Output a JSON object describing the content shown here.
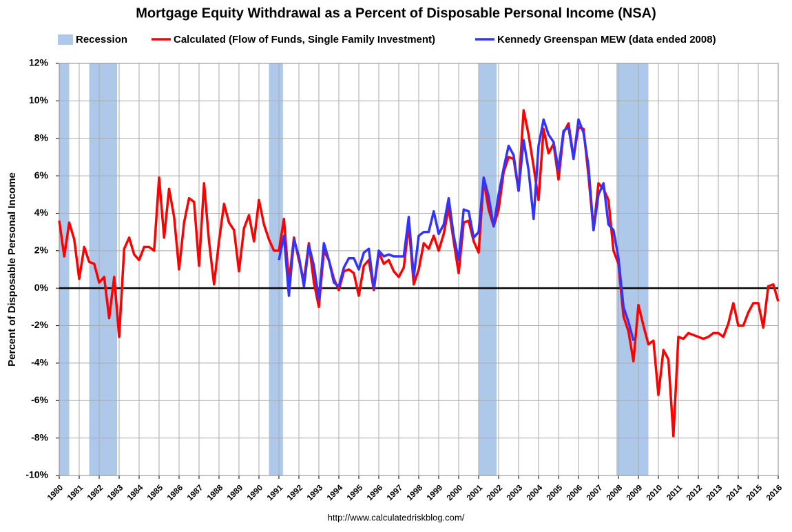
{
  "chart_data": {
    "type": "line",
    "title": "Mortgage Equity Withdrawal as a Percent of Disposable Personal Income (NSA)",
    "y_label": "Percent of Disposable Personal Income",
    "source": "http://www.calculatedriskblog.com/",
    "recession_label": "Recession",
    "recession_color": "#aec8ea",
    "recessions": [
      [
        1980.0,
        1980.5
      ],
      [
        1981.5,
        1982.9
      ],
      [
        1990.5,
        1991.2
      ],
      [
        2001.0,
        2001.9
      ],
      [
        2007.9,
        2009.5
      ]
    ],
    "x": [
      1980,
      1980.25,
      1980.5,
      1980.75,
      1981,
      1981.25,
      1981.5,
      1981.75,
      1982,
      1982.25,
      1982.5,
      1982.75,
      1983,
      1983.25,
      1983.5,
      1983.75,
      1984,
      1984.25,
      1984.5,
      1984.75,
      1985,
      1985.25,
      1985.5,
      1985.75,
      1986,
      1986.25,
      1986.5,
      1986.75,
      1987,
      1987.25,
      1987.5,
      1987.75,
      1988,
      1988.25,
      1988.5,
      1988.75,
      1989,
      1989.25,
      1989.5,
      1989.75,
      1990,
      1990.25,
      1990.5,
      1990.75,
      1991,
      1991.25,
      1991.5,
      1991.75,
      1992,
      1992.25,
      1992.5,
      1992.75,
      1993,
      1993.25,
      1993.5,
      1993.75,
      1994,
      1994.25,
      1994.5,
      1994.75,
      1995,
      1995.25,
      1995.5,
      1995.75,
      1996,
      1996.25,
      1996.5,
      1996.75,
      1997,
      1997.25,
      1997.5,
      1997.75,
      1998,
      1998.25,
      1998.5,
      1998.75,
      1999,
      1999.25,
      1999.5,
      1999.75,
      2000,
      2000.25,
      2000.5,
      2000.75,
      2001,
      2001.25,
      2001.5,
      2001.75,
      2002,
      2002.25,
      2002.5,
      2002.75,
      2003,
      2003.25,
      2003.5,
      2003.75,
      2004,
      2004.25,
      2004.5,
      2004.75,
      2005,
      2005.25,
      2005.5,
      2005.75,
      2006,
      2006.25,
      2006.5,
      2006.75,
      2007,
      2007.25,
      2007.5,
      2007.75,
      2008,
      2008.25,
      2008.5,
      2008.75,
      2009,
      2009.25,
      2009.5,
      2009.75,
      2010,
      2010.25,
      2010.5,
      2010.75,
      2011,
      2011.25,
      2011.5,
      2011.75,
      2012,
      2012.25,
      2012.5,
      2012.75,
      2013,
      2013.25,
      2013.5,
      2013.75,
      2014,
      2014.25,
      2014.5,
      2014.75,
      2015,
      2015.25,
      2015.5,
      2015.75,
      2016
    ],
    "series": [
      {
        "name": "Calculated (Flow of Funds, Single Family Investment)",
        "color": "#ff0000",
        "values": [
          3.6,
          1.7,
          3.5,
          2.6,
          0.5,
          2.2,
          1.4,
          1.3,
          0.3,
          0.6,
          -1.6,
          0.6,
          -2.6,
          2.1,
          2.7,
          1.8,
          1.5,
          2.2,
          2.2,
          2.0,
          5.9,
          2.7,
          5.3,
          3.8,
          1.0,
          3.5,
          4.8,
          4.6,
          1.2,
          5.6,
          2.5,
          0.2,
          2.5,
          4.5,
          3.5,
          3.1,
          0.9,
          3.2,
          3.9,
          2.5,
          4.7,
          3.4,
          2.6,
          2.0,
          2.0,
          3.7,
          0.3,
          2.7,
          1.5,
          0.4,
          2.4,
          0.3,
          -1.0,
          2.0,
          1.5,
          0.5,
          -0.1,
          0.9,
          1.0,
          0.8,
          -0.4,
          1.2,
          1.5,
          -0.1,
          1.9,
          1.3,
          1.5,
          0.9,
          0.6,
          1.1,
          3.4,
          0.2,
          1.0,
          2.4,
          2.1,
          2.8,
          2.0,
          2.9,
          4.3,
          2.5,
          0.8,
          3.5,
          3.6,
          2.5,
          1.9,
          5.8,
          4.2,
          3.3,
          4.2,
          6.2,
          7.0,
          6.9,
          5.2,
          9.5,
          8.2,
          6.5,
          4.7,
          8.5,
          7.2,
          7.7,
          5.8,
          8.3,
          8.8,
          7.0,
          8.6,
          8.5,
          6.0,
          3.1,
          5.6,
          5.3,
          4.7,
          2.0,
          1.3,
          -1.5,
          -2.3,
          -3.9,
          -0.9,
          -2.0,
          -3.0,
          -2.8,
          -5.7,
          -3.3,
          -3.8,
          -7.9,
          -2.6,
          -2.7,
          -2.4,
          -2.5,
          -2.6,
          -2.7,
          -2.6,
          -2.4,
          -2.4,
          -2.6,
          -1.9,
          -0.8,
          -2.0,
          -2.0,
          -1.3,
          -0.8,
          -0.8,
          -2.1,
          0.1,
          0.2,
          -0.7
        ]
      },
      {
        "name": "Kennedy Greenspan MEW (data ended 2008)",
        "color": "#3333ff",
        "values": [
          null,
          null,
          null,
          null,
          null,
          null,
          null,
          null,
          null,
          null,
          null,
          null,
          null,
          null,
          null,
          null,
          null,
          null,
          null,
          null,
          null,
          null,
          null,
          null,
          null,
          null,
          null,
          null,
          null,
          null,
          null,
          null,
          null,
          null,
          null,
          null,
          null,
          null,
          null,
          null,
          null,
          null,
          null,
          null,
          1.5,
          2.8,
          -0.4,
          2.6,
          1.7,
          0.1,
          2.3,
          1.2,
          -0.6,
          2.4,
          1.5,
          0.3,
          0.1,
          1.1,
          1.6,
          1.6,
          1.0,
          1.9,
          2.1,
          0.0,
          2.0,
          1.7,
          1.8,
          1.7,
          1.7,
          1.7,
          3.8,
          0.6,
          2.8,
          3.0,
          3.0,
          4.1,
          2.9,
          3.4,
          4.8,
          2.8,
          1.5,
          4.2,
          4.1,
          2.7,
          3.0,
          5.9,
          4.9,
          3.3,
          5.0,
          6.4,
          7.6,
          7.1,
          5.2,
          7.9,
          6.3,
          3.7,
          7.6,
          9.0,
          8.2,
          7.8,
          6.3,
          8.4,
          8.6,
          6.9,
          9.0,
          8.3,
          6.5,
          3.1,
          5.0,
          5.6,
          3.4,
          3.1,
          1.6,
          -1.0,
          -1.8,
          -2.8,
          null,
          null,
          null,
          null,
          null,
          null,
          null,
          null,
          null,
          null,
          null,
          null,
          null,
          null,
          null,
          null,
          null,
          null,
          null,
          null,
          null,
          null,
          null,
          null,
          null,
          null,
          null,
          null,
          null
        ]
      }
    ],
    "xlim": [
      1980,
      2016
    ],
    "xticks": [
      1980,
      1981,
      1982,
      1983,
      1984,
      1985,
      1986,
      1987,
      1988,
      1989,
      1990,
      1991,
      1992,
      1993,
      1994,
      1995,
      1996,
      1997,
      1998,
      1999,
      2000,
      2001,
      2002,
      2003,
      2004,
      2005,
      2006,
      2007,
      2008,
      2009,
      2010,
      2011,
      2012,
      2013,
      2014,
      2015,
      2016
    ],
    "ylim": [
      -10,
      12
    ],
    "yticks": [
      {
        "value": -10,
        "label": "-10%"
      },
      {
        "value": -8,
        "label": "-8%"
      },
      {
        "value": -6,
        "label": "-6%"
      },
      {
        "value": -4,
        "label": "-4%"
      },
      {
        "value": -2,
        "label": "-2%"
      },
      {
        "value": 0,
        "label": "0%"
      },
      {
        "value": 2,
        "label": "2%"
      },
      {
        "value": 4,
        "label": "4%"
      },
      {
        "value": 6,
        "label": "6%"
      },
      {
        "value": 8,
        "label": "8%"
      },
      {
        "value": 10,
        "label": "10%"
      },
      {
        "value": 12,
        "label": "12%"
      }
    ],
    "grid": true
  }
}
